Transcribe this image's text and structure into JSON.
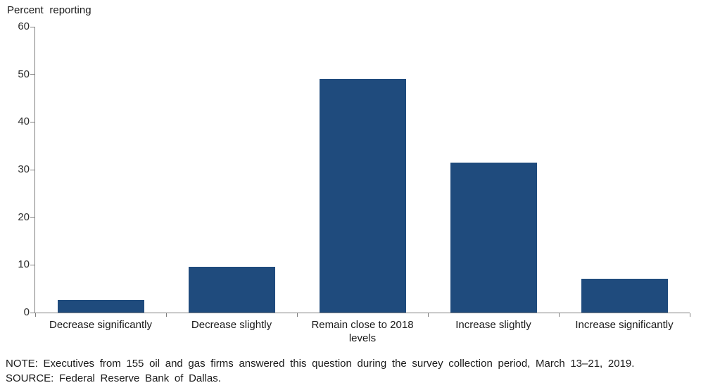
{
  "chart_data": {
    "type": "bar",
    "ylabel": "Percent reporting",
    "xlabel": "",
    "categories": [
      "Decrease significantly",
      "Decrease slightly",
      "Remain close to 2018 levels",
      "Increase slightly",
      "Increase significantly"
    ],
    "values": [
      2.6,
      9.6,
      49.1,
      31.5,
      7.1
    ],
    "ylim": [
      0,
      60
    ],
    "yticks": [
      0,
      10,
      20,
      30,
      40,
      50,
      60
    ],
    "grid": false,
    "legend_position": "none",
    "bar_color": "#1F4B7D"
  },
  "colors": {
    "bar": "#1F4B7D",
    "axis": "#808080",
    "text": "#1a1a1a",
    "background": "#ffffff"
  },
  "notes": {
    "note": "NOTE:  Executives from 155 oil and gas firms answered this question during the survey collection period, March 13–21, 2019.",
    "source": "SOURCE:  Federal Reserve Bank of Dallas."
  }
}
